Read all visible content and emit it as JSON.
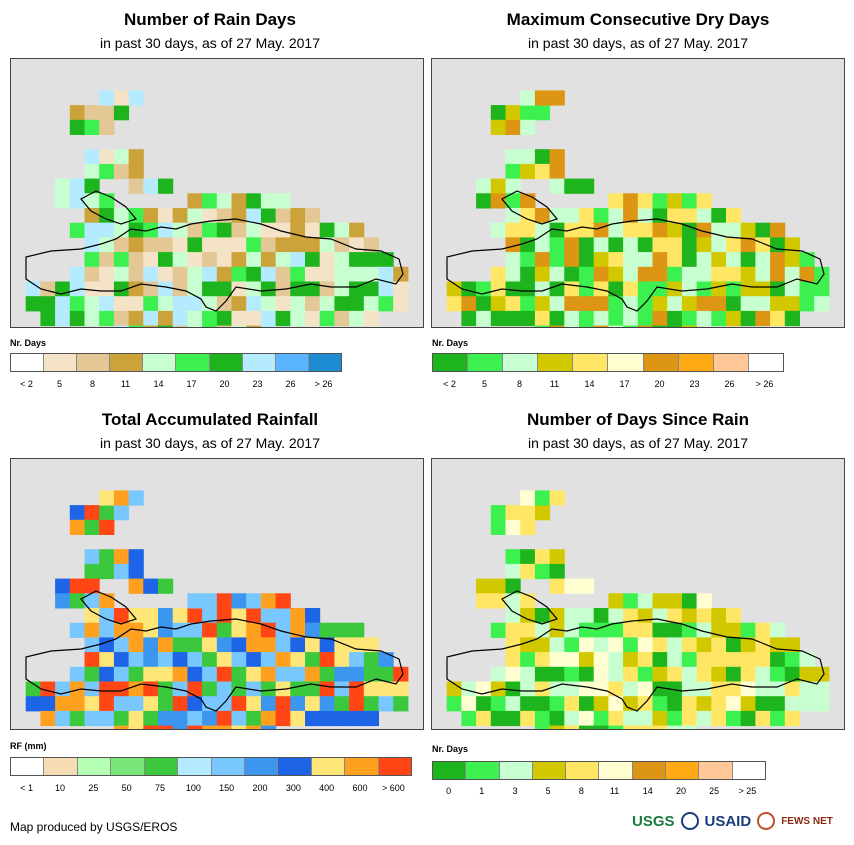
{
  "panels": [
    {
      "title": "Number of Rain Days",
      "subtitle": "in past 30 days, as of 27 May. 2017",
      "legend_title": "Nr. Days",
      "legend_colors": [
        "#ffffff",
        "#f5e3c8",
        "#e3c795",
        "#cca33a",
        "#c8ffd0",
        "#3cf050",
        "#1eb41e",
        "#b4ebff",
        "#5ab4ff",
        "#1e8cd2"
      ],
      "legend_labels": [
        "< 2",
        "5",
        "8",
        "11",
        "14",
        "17",
        "20",
        "23",
        "26",
        "> 26"
      ],
      "map_palette": [
        "#f5e3c8",
        "#e3c795",
        "#cca33a",
        "#c8ffd0",
        "#3cf050",
        "#1eb41e",
        "#b4ebff"
      ]
    },
    {
      "title": "Maximum Consecutive Dry Days",
      "subtitle": "in past 30 days, as of 27 May. 2017",
      "legend_title": "Nr. Days",
      "legend_colors": [
        "#1eb41e",
        "#3cf050",
        "#c8ffd0",
        "#d2c800",
        "#ffe664",
        "#ffffd2",
        "#dc9614",
        "#ffaa14",
        "#ffc896",
        "#ffffff"
      ],
      "legend_labels": [
        "< 2",
        "5",
        "8",
        "11",
        "14",
        "17",
        "20",
        "23",
        "26",
        "> 26"
      ],
      "map_palette": [
        "#c8ffd0",
        "#c8ffd0",
        "#3cf050",
        "#1eb41e",
        "#d2c800",
        "#ffe664",
        "#dc9614"
      ]
    },
    {
      "title": "Total Accumulated Rainfall",
      "subtitle": "in past 30 days, as of 27 May. 2017",
      "legend_title": "RF (mm)",
      "legend_colors": [
        "#ffffff",
        "#f5dcb4",
        "#b4ffb4",
        "#78e678",
        "#3cc83c",
        "#b4ebff",
        "#78c8ff",
        "#3c96f0",
        "#1e64e6",
        "#ffe678",
        "#ffa01e",
        "#ff4614"
      ],
      "legend_labels": [
        "< 1",
        "10",
        "25",
        "50",
        "75",
        "100",
        "150",
        "200",
        "300",
        "400",
        "600",
        "> 600"
      ],
      "map_palette": [
        "#3c96f0",
        "#1e64e6",
        "#78c8ff",
        "#ffe678",
        "#ffa01e",
        "#ff4614",
        "#3cc83c"
      ]
    },
    {
      "title": "Number of Days Since Rain",
      "subtitle": "in past 30 days, as of 27 May. 2017",
      "legend_title": "Nr. Days",
      "legend_colors": [
        "#1eb41e",
        "#3cf050",
        "#c8ffd0",
        "#d2c800",
        "#ffe664",
        "#ffffd2",
        "#dc9614",
        "#ffaa14",
        "#ffc896",
        "#ffffff"
      ],
      "legend_labels": [
        "0",
        "1",
        "3",
        "5",
        "8",
        "11",
        "14",
        "20",
        "25",
        "> 25"
      ],
      "map_palette": [
        "#ffffd2",
        "#ffe664",
        "#d2c800",
        "#3cf050",
        "#1eb41e",
        "#c8ffd0",
        "#ffe664"
      ]
    }
  ],
  "footer": {
    "credit": "Map produced by USGS/EROS",
    "logos": [
      "USGS",
      "USAID",
      "FEWS NET"
    ]
  }
}
